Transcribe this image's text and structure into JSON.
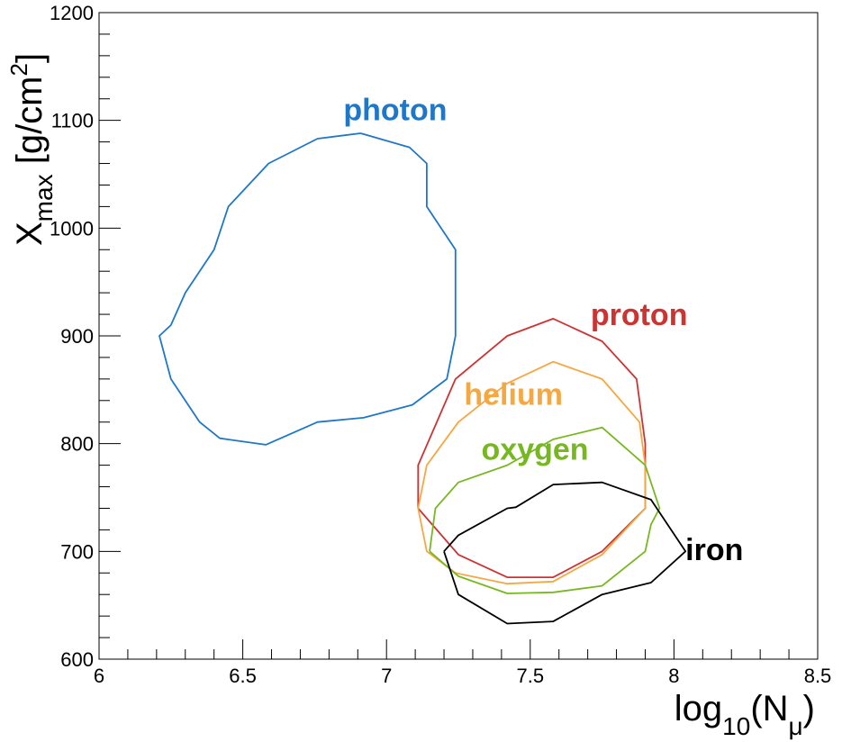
{
  "chart_data": {
    "type": "line",
    "xlim": [
      6,
      8.5
    ],
    "ylim": [
      600,
      1200
    ],
    "x_ticks": [
      6,
      6.5,
      7,
      7.5,
      8,
      8.5
    ],
    "y_ticks": [
      600,
      700,
      800,
      900,
      1000,
      1100,
      1200
    ],
    "xlabel": {
      "base": "log",
      "sub": "10",
      "open": "(N",
      "sub2": "μ",
      "close": ")"
    },
    "ylabel": {
      "base": "X",
      "sub": "max",
      "mid": " [g/cm",
      "sup": "2",
      "end": "]"
    },
    "grid": false,
    "legend": "none",
    "series": [
      {
        "name": "photon",
        "color": "#1f77c8",
        "label_at": [
          6.85,
          1100
        ],
        "points": [
          [
            6.91,
            1088
          ],
          [
            6.76,
            1083
          ],
          [
            6.59,
            1060
          ],
          [
            6.45,
            1020
          ],
          [
            6.4,
            980
          ],
          [
            6.3,
            940
          ],
          [
            6.25,
            910
          ],
          [
            6.21,
            900
          ],
          [
            6.25,
            860
          ],
          [
            6.35,
            820
          ],
          [
            6.42,
            805
          ],
          [
            6.58,
            799
          ],
          [
            6.76,
            820
          ],
          [
            6.92,
            824
          ],
          [
            7.09,
            836
          ],
          [
            7.21,
            860
          ],
          [
            7.24,
            900
          ],
          [
            7.24,
            980
          ],
          [
            7.14,
            1020
          ],
          [
            7.14,
            1060
          ],
          [
            7.08,
            1075
          ],
          [
            6.91,
            1088
          ]
        ]
      },
      {
        "name": "proton",
        "color": "#cc3333",
        "label_at": [
          7.71,
          910
        ],
        "points": [
          [
            7.11,
            740
          ],
          [
            7.11,
            780
          ],
          [
            7.24,
            860
          ],
          [
            7.42,
            900
          ],
          [
            7.58,
            916
          ],
          [
            7.75,
            895
          ],
          [
            7.87,
            860
          ],
          [
            7.9,
            800
          ],
          [
            7.9,
            740
          ],
          [
            7.75,
            700
          ],
          [
            7.58,
            676
          ],
          [
            7.42,
            676
          ],
          [
            7.25,
            697
          ],
          [
            7.11,
            740
          ]
        ]
      },
      {
        "name": "helium",
        "color": "#f5a742",
        "label_at": [
          7.27,
          836
        ],
        "points": [
          [
            7.11,
            740
          ],
          [
            7.14,
            780
          ],
          [
            7.25,
            820
          ],
          [
            7.42,
            856
          ],
          [
            7.58,
            876
          ],
          [
            7.75,
            860
          ],
          [
            7.88,
            820
          ],
          [
            7.9,
            780
          ],
          [
            7.9,
            740
          ],
          [
            7.75,
            697
          ],
          [
            7.58,
            672
          ],
          [
            7.42,
            670
          ],
          [
            7.24,
            680
          ],
          [
            7.14,
            700
          ],
          [
            7.11,
            740
          ]
        ]
      },
      {
        "name": "oxygen",
        "color": "#77b820",
        "label_at": [
          7.33,
          785
        ],
        "points": [
          [
            7.15,
            700
          ],
          [
            7.17,
            740
          ],
          [
            7.25,
            764
          ],
          [
            7.42,
            780
          ],
          [
            7.58,
            804
          ],
          [
            7.75,
            815
          ],
          [
            7.9,
            780
          ],
          [
            7.95,
            740
          ],
          [
            7.92,
            725
          ],
          [
            7.9,
            700
          ],
          [
            7.75,
            668
          ],
          [
            7.58,
            662
          ],
          [
            7.42,
            661
          ],
          [
            7.25,
            677
          ],
          [
            7.15,
            700
          ]
        ]
      },
      {
        "name": "iron",
        "color": "#000000",
        "label_at": [
          8.04,
          692
        ],
        "points": [
          [
            7.2,
            700
          ],
          [
            7.25,
            715
          ],
          [
            7.42,
            740
          ],
          [
            7.45,
            741
          ],
          [
            7.58,
            762
          ],
          [
            7.75,
            764
          ],
          [
            7.92,
            748
          ],
          [
            8.04,
            700
          ],
          [
            7.92,
            671
          ],
          [
            7.75,
            660
          ],
          [
            7.58,
            635
          ],
          [
            7.42,
            633
          ],
          [
            7.25,
            660
          ],
          [
            7.2,
            700
          ]
        ]
      }
    ]
  }
}
